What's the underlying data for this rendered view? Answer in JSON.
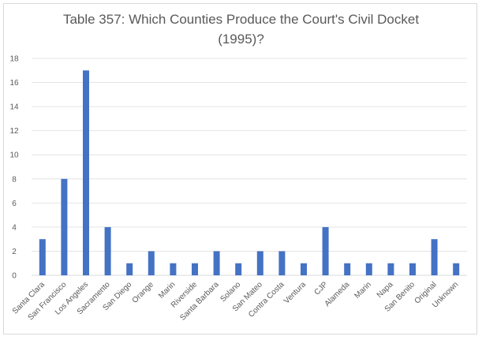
{
  "chart_data": {
    "type": "bar",
    "title_line1": "Table 357: Which Counties Produce the Court's Civil Docket",
    "title_line2": "(1995)?",
    "xlabel": "",
    "ylabel": "",
    "ylim": [
      0,
      18
    ],
    "yticks": [
      0,
      2,
      4,
      6,
      8,
      10,
      12,
      14,
      16,
      18
    ],
    "grid": true,
    "legend": "none",
    "bar_color": "#4472c4",
    "categories": [
      "Santa Clara",
      "San Francisco",
      "Los Angeles",
      "Sacramento",
      "San Diego",
      "Orange",
      "Marin",
      "Riverside",
      "Santa Barbara",
      "Solano",
      "San Mateo",
      "Contra Costa",
      "Ventura",
      "CJP",
      "Alameda",
      "Marin",
      "Napa",
      "San Benito",
      "Original",
      "Unknown"
    ],
    "values": [
      3,
      8,
      17,
      4,
      1,
      2,
      1,
      1,
      2,
      1,
      2,
      2,
      1,
      4,
      1,
      1,
      1,
      1,
      3,
      1
    ]
  }
}
